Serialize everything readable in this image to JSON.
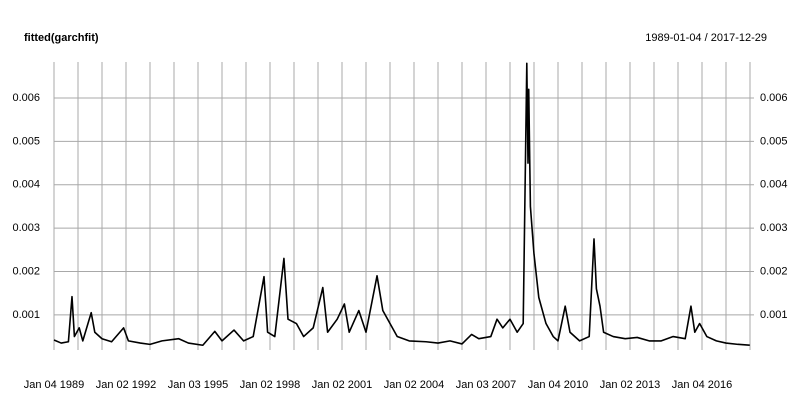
{
  "chart_data": {
    "type": "line",
    "title": "fitted(garchfit)",
    "subtitle": "1989-01-04 / 2017-12-29",
    "x": [
      1989.0,
      1989.3,
      1989.6,
      1989.75,
      1989.85,
      1990.05,
      1990.2,
      1990.55,
      1990.7,
      1991.0,
      1991.4,
      1991.9,
      1992.1,
      1992.6,
      1993.0,
      1993.5,
      1994.2,
      1994.6,
      1995.2,
      1995.7,
      1996.0,
      1996.5,
      1996.9,
      1997.3,
      1997.75,
      1997.9,
      1998.2,
      1998.58,
      1998.75,
      1999.1,
      1999.4,
      1999.8,
      2000.2,
      2000.4,
      2000.8,
      2001.1,
      2001.3,
      2001.7,
      2002.0,
      2002.46,
      2002.7,
      2003.0,
      2003.3,
      2003.8,
      2004.5,
      2005.0,
      2005.5,
      2006.0,
      2006.4,
      2006.7,
      2007.2,
      2007.46,
      2007.7,
      2008.0,
      2008.3,
      2008.55,
      2008.7,
      2008.75,
      2008.78,
      2008.85,
      2009.0,
      2009.2,
      2009.5,
      2009.8,
      2010.0,
      2010.3,
      2010.5,
      2010.9,
      2011.3,
      2011.5,
      2011.6,
      2011.75,
      2011.9,
      2012.3,
      2012.8,
      2013.3,
      2013.8,
      2014.3,
      2014.8,
      2015.3,
      2015.54,
      2015.7,
      2015.9,
      2016.2,
      2016.6,
      2017.0,
      2017.5,
      2017.99
    ],
    "series": [
      {
        "color": "#000000",
        "values": [
          0.00042,
          0.00035,
          0.00038,
          0.00142,
          0.0005,
          0.0007,
          0.0004,
          0.00105,
          0.0006,
          0.00045,
          0.00038,
          0.0007,
          0.0004,
          0.00035,
          0.00032,
          0.0004,
          0.00045,
          0.00035,
          0.0003,
          0.00062,
          0.0004,
          0.00065,
          0.0004,
          0.0005,
          0.00188,
          0.0006,
          0.0005,
          0.0023,
          0.0009,
          0.0008,
          0.0005,
          0.0007,
          0.00163,
          0.0006,
          0.0009,
          0.00125,
          0.0006,
          0.0011,
          0.0006,
          0.0019,
          0.0011,
          0.0008,
          0.0005,
          0.0004,
          0.00038,
          0.00035,
          0.0004,
          0.00033,
          0.00055,
          0.00045,
          0.0005,
          0.0009,
          0.0007,
          0.0009,
          0.0006,
          0.0008,
          0.0068,
          0.0045,
          0.0062,
          0.0035,
          0.0024,
          0.0014,
          0.0008,
          0.0005,
          0.0004,
          0.0012,
          0.0006,
          0.0004,
          0.0005,
          0.00275,
          0.0016,
          0.0012,
          0.0006,
          0.0005,
          0.00045,
          0.00048,
          0.0004,
          0.0004,
          0.0005,
          0.00045,
          0.0012,
          0.0006,
          0.0008,
          0.0005,
          0.0004,
          0.00035,
          0.00032,
          0.0003
        ]
      }
    ],
    "xlim": [
      1989.0,
      2018.0
    ],
    "xticks": [
      {
        "value": 1989,
        "label": "Jan 04 1989"
      },
      {
        "value": 1992,
        "label": "Jan 02 1992"
      },
      {
        "value": 1995,
        "label": "Jan 03 1995"
      },
      {
        "value": 1998,
        "label": "Jan 02 1998"
      },
      {
        "value": 2001,
        "label": "Jan 02 2001"
      },
      {
        "value": 2004,
        "label": "Jan 02 2004"
      },
      {
        "value": 2007,
        "label": "Jan 03 2007"
      },
      {
        "value": 2010,
        "label": "Jan 04 2010"
      },
      {
        "value": 2013,
        "label": "Jan 02 2013"
      },
      {
        "value": 2016,
        "label": "Jan 04 2016"
      }
    ],
    "minor_xticks": [
      1990,
      1991,
      1993,
      1994,
      1996,
      1997,
      1999,
      2000,
      2002,
      2003,
      2005,
      2006,
      2008,
      2009,
      2011,
      2012,
      2014,
      2015,
      2017,
      2018
    ],
    "ylim": [
      0.00019,
      0.00683
    ],
    "yticks": [
      0.001,
      0.002,
      0.003,
      0.004,
      0.005,
      0.006
    ],
    "grid": true
  }
}
